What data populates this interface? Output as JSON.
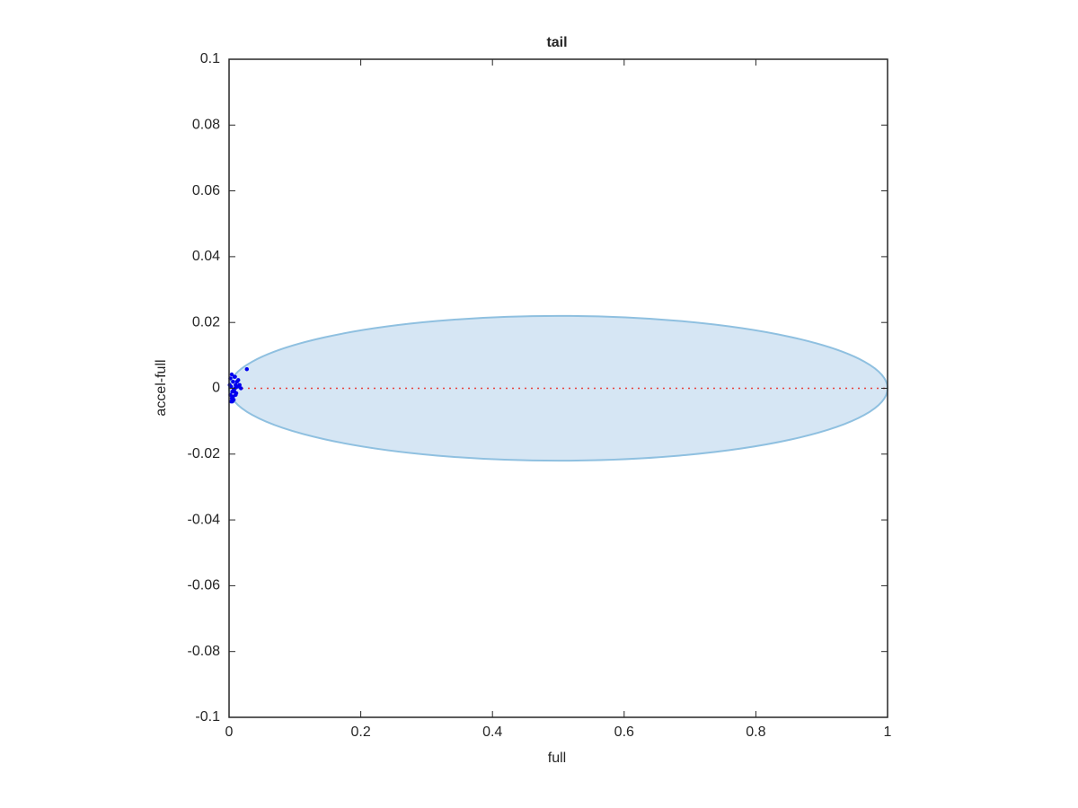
{
  "chart_data": {
    "type": "scatter",
    "title": "tail",
    "x_label": "full",
    "y_label": "accel-full",
    "xlim": [
      0,
      1
    ],
    "ylim": [
      -0.1,
      0.1
    ],
    "xticks": [
      0,
      0.2,
      0.4,
      0.6,
      0.8,
      1
    ],
    "yticks": [
      -0.1,
      -0.08,
      -0.06,
      -0.04,
      -0.02,
      0,
      0.02,
      0.04,
      0.06,
      0.08,
      0.1
    ],
    "ellipse": {
      "cx": 0.5,
      "cy": 0,
      "rx": 0.5,
      "ry": 0.022,
      "fill": "#d6e6f4",
      "stroke": "#8fc0e0"
    },
    "reference_line": {
      "y": 0,
      "x": [
        0,
        1
      ],
      "color": "#e8403a"
    },
    "series": [
      {
        "color": "#0000ee",
        "x": [
          0.027,
          0.002,
          0.004,
          0.006,
          0.008,
          0.01,
          0.012,
          0.014,
          0.003,
          0.005,
          0.007,
          0.009,
          0.011,
          0.013,
          0.002,
          0.004,
          0.006,
          0.008,
          0.01,
          0.003,
          0.005,
          0.007,
          0.018,
          0.016,
          0.001,
          0.009
        ],
        "values": [
          0.0058,
          0.003,
          0.0042,
          0.002,
          0.0035,
          0.001,
          0.002,
          0.0025,
          0.0005,
          -0.001,
          -0.0005,
          0,
          -0.0015,
          0.0005,
          -0.002,
          -0.003,
          -0.0025,
          -0.001,
          -0.002,
          -0.004,
          -0.004,
          -0.0035,
          0,
          0.001,
          0.001,
          0.0035
        ]
      }
    ]
  }
}
